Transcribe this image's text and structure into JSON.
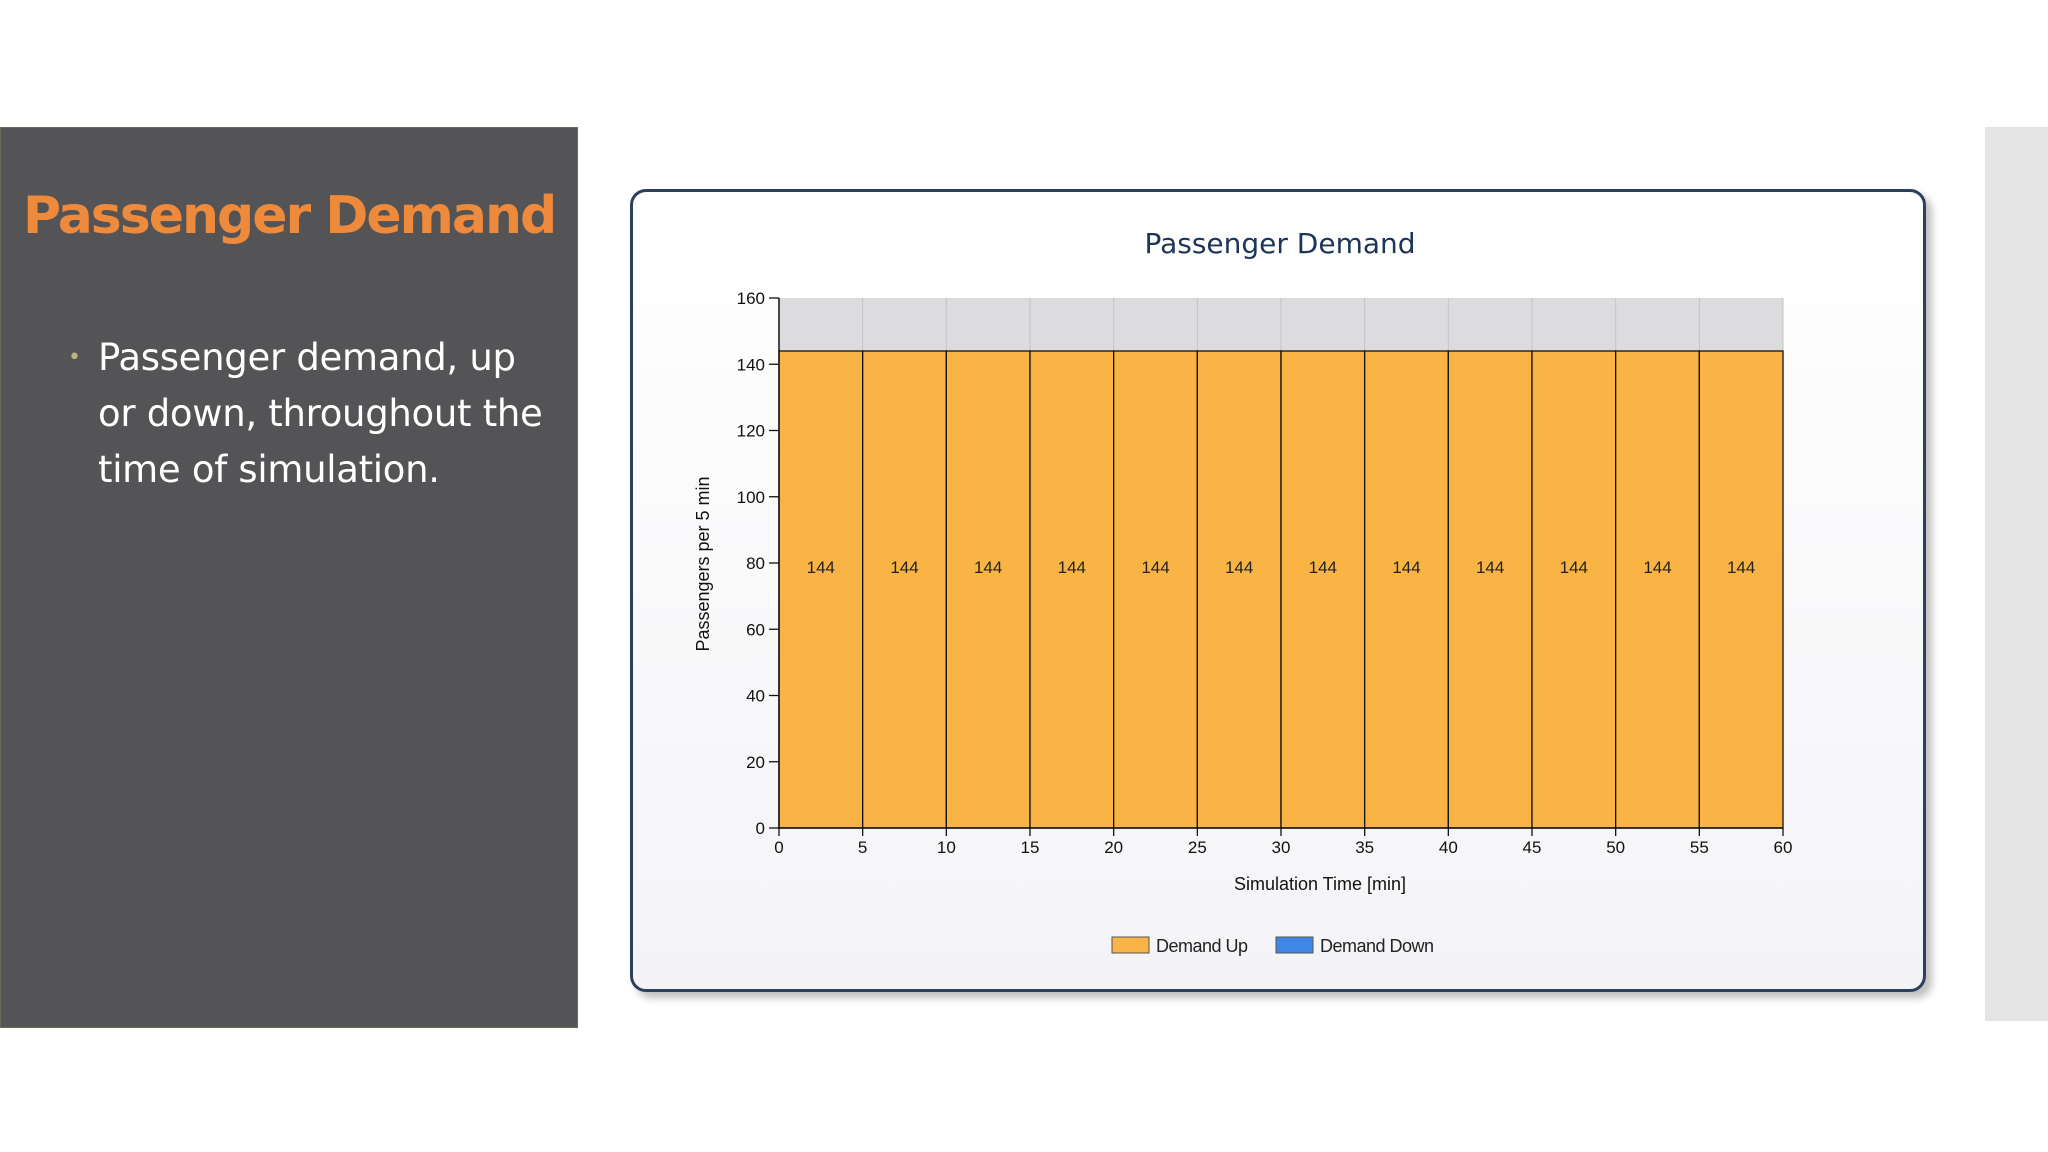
{
  "slide": {
    "title": "Passenger Demand",
    "bullets": [
      "Passenger demand, up or down, throughout the time of simulation."
    ]
  },
  "colors": {
    "panel": "#545355",
    "title_accent": "#ee8a3c",
    "bar_up": "#f9b445",
    "bar_down": "#3f86e6",
    "plot_background": "#dcdcde"
  },
  "chart_data": {
    "type": "bar",
    "title": "Passenger Demand",
    "xlabel": "Simulation Time [min]",
    "ylabel": "Passengers per 5 min",
    "x_ticks": [
      0,
      5,
      10,
      15,
      20,
      25,
      30,
      35,
      40,
      45,
      50,
      55,
      60
    ],
    "y_ticks": [
      0,
      20,
      40,
      60,
      80,
      100,
      120,
      140,
      160
    ],
    "xlim": [
      0,
      60
    ],
    "ylim": [
      0,
      160
    ],
    "bin_width": 5,
    "categories": [
      "0-5",
      "5-10",
      "10-15",
      "15-20",
      "20-25",
      "25-30",
      "30-35",
      "35-40",
      "40-45",
      "45-50",
      "50-55",
      "55-60"
    ],
    "series": [
      {
        "name": "Demand Up",
        "color": "#f9b445",
        "values": [
          144,
          144,
          144,
          144,
          144,
          144,
          144,
          144,
          144,
          144,
          144,
          144
        ]
      },
      {
        "name": "Demand Down",
        "color": "#3f86e6",
        "values": [
          0,
          0,
          0,
          0,
          0,
          0,
          0,
          0,
          0,
          0,
          0,
          0
        ]
      }
    ],
    "data_labels": [
      "144",
      "144",
      "144",
      "144",
      "144",
      "144",
      "144",
      "144",
      "144",
      "144",
      "144",
      "144"
    ],
    "legend_position": "bottom-center",
    "grid": true
  }
}
